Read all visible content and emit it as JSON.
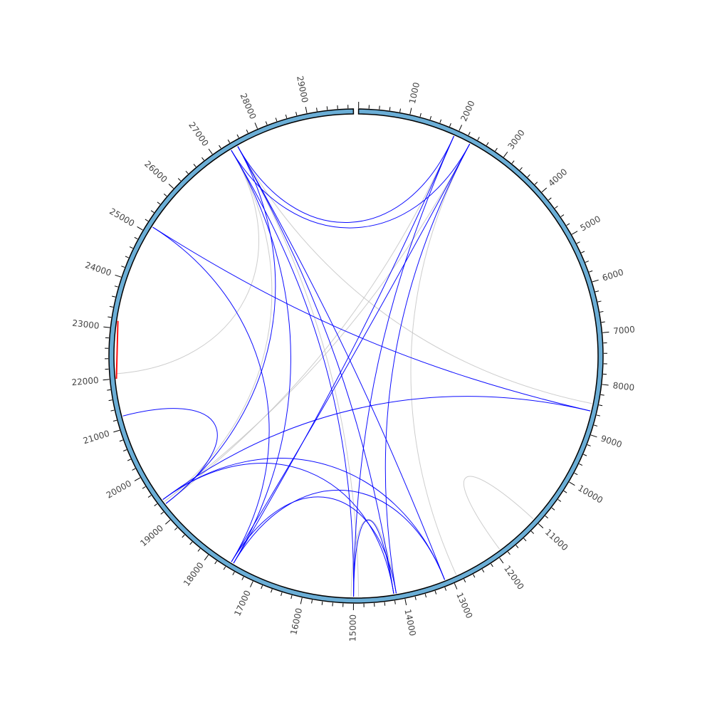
{
  "chart_data": {
    "type": "chord",
    "genome_length": 29903,
    "axis": {
      "tick_labels": [
        "1000",
        "2000",
        "3000",
        "4000",
        "5000",
        "6000",
        "7000",
        "8000",
        "9000",
        "10000",
        "11000",
        "12000",
        "13000",
        "14000",
        "15000",
        "16000",
        "17000",
        "18000",
        "19000",
        "20000",
        "21000",
        "22000",
        "23000",
        "24000",
        "25000",
        "26000",
        "27000",
        "28000",
        "29000"
      ],
      "tick_values": [
        1000,
        2000,
        3000,
        4000,
        5000,
        6000,
        7000,
        8000,
        9000,
        10000,
        11000,
        12000,
        13000,
        14000,
        15000,
        16000,
        17000,
        18000,
        19000,
        20000,
        21000,
        22000,
        23000,
        24000,
        25000,
        26000,
        27000,
        28000,
        29000
      ],
      "minor_tick_interval": 200,
      "ideogram_color": "#6baed6"
    },
    "links": [
      {
        "color": "#0000ff",
        "source": 1950,
        "target": 27500
      },
      {
        "color": "#0000ff",
        "source": 2300,
        "target": 27350
      },
      {
        "color": "#0000ff",
        "source": 1950,
        "target": 17500
      },
      {
        "color": "#0000ff",
        "source": 2300,
        "target": 17550
      },
      {
        "color": "#0000ff",
        "source": 1950,
        "target": 15000
      },
      {
        "color": "#0000ff",
        "source": 2300,
        "target": 14150
      },
      {
        "color": "#0000ff",
        "source": 8550,
        "target": 25150
      },
      {
        "color": "#0000ff",
        "source": 8550,
        "target": 19400
      },
      {
        "color": "#0000ff",
        "source": 27500,
        "target": 13150
      },
      {
        "color": "#0000ff",
        "source": 27350,
        "target": 15000
      },
      {
        "color": "#0000ff",
        "source": 27500,
        "target": 14200
      },
      {
        "color": "#0000ff",
        "source": 27350,
        "target": 17500
      },
      {
        "color": "#0000ff",
        "source": 25150,
        "target": 17550
      },
      {
        "color": "#0000ff",
        "source": 19400,
        "target": 13150
      },
      {
        "color": "#0000ff",
        "source": 19400,
        "target": 14200
      },
      {
        "color": "#0000ff",
        "source": 17500,
        "target": 13150
      },
      {
        "color": "#0000ff",
        "source": 15000,
        "target": 14200
      },
      {
        "color": "#0000ff",
        "source": 17550,
        "target": 14150
      },
      {
        "color": "#0000ff",
        "source": 19300,
        "target": 21250
      },
      {
        "color": "#0000ff",
        "source": 27500,
        "target": 19300
      },
      {
        "color": "#c8c8c8",
        "source": 2300,
        "target": 19350
      },
      {
        "color": "#c8c8c8",
        "source": 2300,
        "target": 12900
      },
      {
        "color": "#c8c8c8",
        "source": 27350,
        "target": 22100
      },
      {
        "color": "#c8c8c8",
        "source": 27500,
        "target": 14900
      },
      {
        "color": "#c8c8c8",
        "source": 27350,
        "target": 19350
      },
      {
        "color": "#c8c8c8",
        "source": 27500,
        "target": 8400
      },
      {
        "color": "#c8c8c8",
        "source": 1950,
        "target": 19300
      },
      {
        "color": "#c8c8c8",
        "source": 14150,
        "target": 15050
      },
      {
        "color": "#c8c8c8",
        "source": 11000,
        "target": 11900
      },
      {
        "color": "#ff0000",
        "source": 22000,
        "target": 23150
      }
    ]
  }
}
